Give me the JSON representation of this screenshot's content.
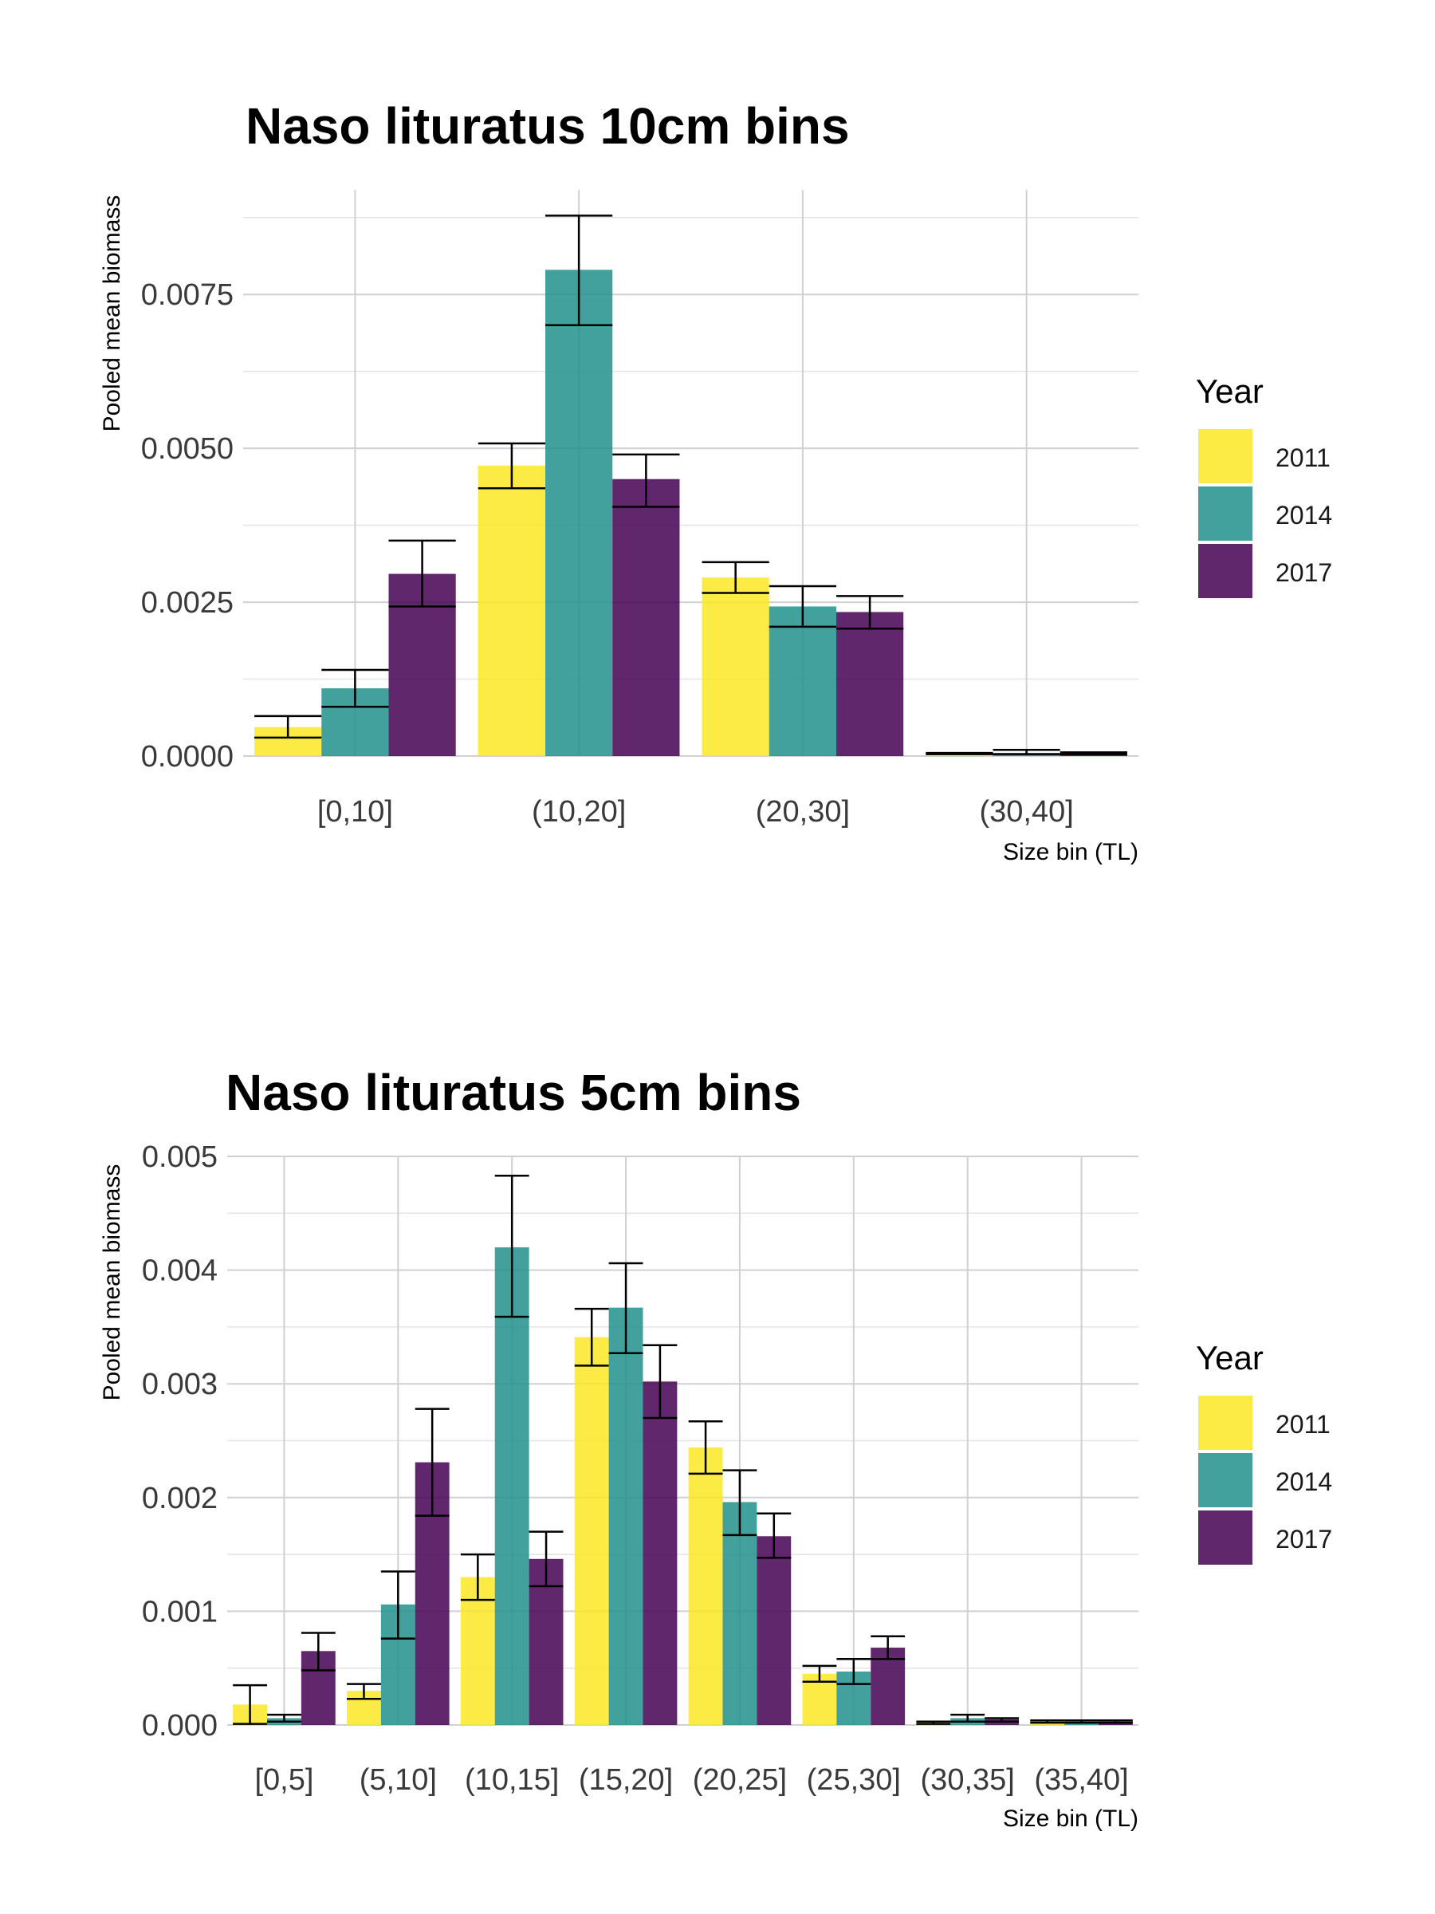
{
  "colors": {
    "2011": "#FDE725",
    "2014": "#21908C",
    "2017": "#440154"
  },
  "chart_data": [
    {
      "type": "bar",
      "title": "Naso lituratus 10cm bins",
      "xlabel": "Size bin (TL)",
      "ylabel": "Pooled mean biomass",
      "ylim": [
        0,
        0.0092
      ],
      "yticks": [
        0,
        0.0025,
        0.005,
        0.0075
      ],
      "ytick_labels": [
        "0.0000",
        "0.0025",
        "0.0050",
        "0.0075"
      ],
      "categories": [
        "[0,10]",
        "(10,20]",
        "(20,30]",
        "(30,40]"
      ],
      "legend_title": "Year",
      "series": [
        {
          "name": "2011",
          "values": [
            0.00047,
            0.00472,
            0.0029,
            4e-05
          ],
          "err_low": [
            0.0003,
            0.00435,
            0.00265,
            3e-05
          ],
          "err_high": [
            0.00065,
            0.00508,
            0.00315,
            5e-05
          ]
        },
        {
          "name": "2014",
          "values": [
            0.0011,
            0.0079,
            0.00243,
            5e-05
          ],
          "err_low": [
            0.0008,
            0.007,
            0.0021,
            3e-05
          ],
          "err_high": [
            0.0014,
            0.00878,
            0.00276,
            0.0001
          ]
        },
        {
          "name": "2017",
          "values": [
            0.00296,
            0.0045,
            0.00234,
            4e-05
          ],
          "err_low": [
            0.00243,
            0.00405,
            0.00207,
            3e-05
          ],
          "err_high": [
            0.0035,
            0.0049,
            0.0026,
            6e-05
          ]
        }
      ]
    },
    {
      "type": "bar",
      "title": "Naso lituratus 5cm bins",
      "xlabel": "Size bin (TL)",
      "ylabel": "Pooled mean biomass",
      "ylim": [
        0,
        0.005
      ],
      "yticks": [
        0,
        0.001,
        0.002,
        0.003,
        0.004,
        0.005
      ],
      "ytick_labels": [
        "0.000",
        "0.001",
        "0.002",
        "0.003",
        "0.004",
        "0.005"
      ],
      "categories": [
        "[0,5]",
        "(5,10]",
        "(10,15]",
        "(15,20]",
        "(20,25]",
        "(25,30]",
        "(30,35]",
        "(35,40]"
      ],
      "legend_title": "Year",
      "series": [
        {
          "name": "2011",
          "values": [
            0.00018,
            0.0003,
            0.0013,
            0.00341,
            0.00244,
            0.00045,
            2e-05,
            3e-05
          ],
          "err_low": [
            1e-05,
            0.00023,
            0.0011,
            0.00316,
            0.00221,
            0.00038,
            1e-05,
            2e-05
          ],
          "err_high": [
            0.00035,
            0.00036,
            0.0015,
            0.00366,
            0.00267,
            0.00052,
            3e-05,
            4e-05
          ]
        },
        {
          "name": "2014",
          "values": [
            6e-05,
            0.00106,
            0.0042,
            0.00367,
            0.00196,
            0.00047,
            6e-05,
            3e-05
          ],
          "err_low": [
            3e-05,
            0.00076,
            0.00359,
            0.00327,
            0.00167,
            0.00036,
            3e-05,
            2e-05
          ],
          "err_high": [
            9e-05,
            0.00135,
            0.00483,
            0.00406,
            0.00224,
            0.00058,
            9e-05,
            4e-05
          ]
        },
        {
          "name": "2017",
          "values": [
            0.00065,
            0.00231,
            0.00146,
            0.00302,
            0.00166,
            0.00068,
            5e-05,
            3e-05
          ],
          "err_low": [
            0.00048,
            0.00184,
            0.00122,
            0.0027,
            0.00147,
            0.00058,
            3e-05,
            2e-05
          ],
          "err_high": [
            0.00081,
            0.00278,
            0.0017,
            0.00334,
            0.00186,
            0.00078,
            6e-05,
            4e-05
          ]
        }
      ]
    }
  ]
}
